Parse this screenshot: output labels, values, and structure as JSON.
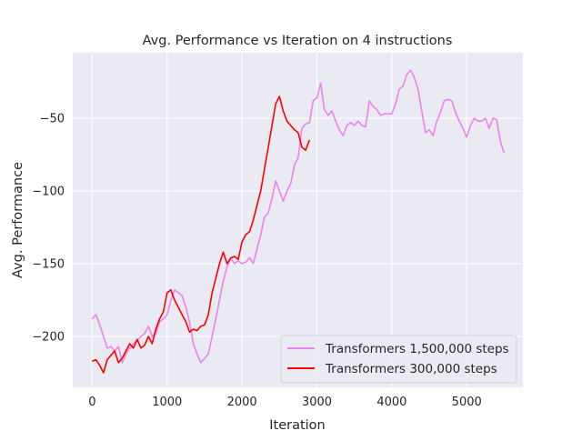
{
  "chart_data": {
    "type": "line",
    "title": "Avg. Performance vs Iteration on 4 instructions",
    "xlabel": "Iteration",
    "ylabel": "Avg. Performance",
    "xlim": [
      -260,
      5750
    ],
    "ylim": [
      -235,
      -5
    ],
    "xticks": [
      0,
      1000,
      2000,
      3000,
      4000,
      5000
    ],
    "yticks": [
      -200,
      -150,
      -100,
      -50
    ],
    "xtick_labels": [
      "0",
      "1000",
      "2000",
      "3000",
      "4000",
      "5000"
    ],
    "ytick_labels": [
      "−200",
      "−150",
      "−100",
      "−50"
    ],
    "grid": true,
    "background": "#eaeaf2",
    "legend_position": "lower-right",
    "series": [
      {
        "name": "Transformers 1,500,000 steps",
        "color": "#ee82ee",
        "x": [
          0,
          50,
          100,
          150,
          200,
          250,
          300,
          350,
          400,
          450,
          500,
          550,
          600,
          650,
          700,
          750,
          800,
          850,
          900,
          950,
          1000,
          1050,
          1100,
          1150,
          1200,
          1250,
          1300,
          1350,
          1400,
          1450,
          1500,
          1550,
          1600,
          1650,
          1700,
          1750,
          1800,
          1850,
          1900,
          1950,
          2000,
          2050,
          2100,
          2150,
          2200,
          2250,
          2300,
          2350,
          2400,
          2450,
          2500,
          2550,
          2600,
          2650,
          2700,
          2750,
          2800,
          2850,
          2900,
          2950,
          3000,
          3050,
          3100,
          3150,
          3200,
          3250,
          3300,
          3350,
          3400,
          3450,
          3500,
          3550,
          3600,
          3650,
          3700,
          3750,
          3800,
          3850,
          3900,
          3950,
          4000,
          4050,
          4100,
          4150,
          4200,
          4250,
          4300,
          4350,
          4400,
          4450,
          4500,
          4550,
          4600,
          4650,
          4700,
          4750,
          4800,
          4850,
          4900,
          4950,
          5000,
          5050,
          5100,
          5150,
          5200,
          5250,
          5300,
          5350,
          5400,
          5450,
          5500
        ],
        "y": [
          -188,
          -185,
          -192,
          -200,
          -208,
          -207,
          -210,
          -207,
          -218,
          -212,
          -208,
          -205,
          -203,
          -200,
          -198,
          -193,
          -200,
          -198,
          -190,
          -188,
          -185,
          -175,
          -168,
          -170,
          -172,
          -180,
          -190,
          -205,
          -212,
          -218,
          -215,
          -212,
          -200,
          -188,
          -175,
          -162,
          -152,
          -146,
          -150,
          -148,
          -150,
          -149,
          -146,
          -150,
          -140,
          -130,
          -118,
          -115,
          -105,
          -93,
          -100,
          -107,
          -100,
          -95,
          -82,
          -77,
          -57,
          -54,
          -53,
          -38,
          -36,
          -26,
          -44,
          -48,
          -45,
          -52,
          -58,
          -62,
          -55,
          -53,
          -55,
          -52,
          -55,
          -56,
          -38,
          -42,
          -44,
          -48,
          -47,
          -47,
          -47,
          -40,
          -30,
          -28,
          -20,
          -17,
          -22,
          -30,
          -45,
          -60,
          -58,
          -62,
          -52,
          -46,
          -38,
          -37,
          -38,
          -46,
          -52,
          -57,
          -63,
          -55,
          -50,
          -52,
          -52,
          -50,
          -57,
          -50,
          -51,
          -66,
          -74
        ]
      },
      {
        "name": "Transformers 300,000 steps",
        "color": "#ff0000",
        "x": [
          0,
          50,
          100,
          150,
          200,
          250,
          300,
          350,
          400,
          450,
          500,
          550,
          600,
          650,
          700,
          750,
          800,
          850,
          900,
          950,
          1000,
          1050,
          1100,
          1150,
          1200,
          1250,
          1300,
          1350,
          1400,
          1450,
          1500,
          1550,
          1600,
          1650,
          1700,
          1750,
          1800,
          1850,
          1900,
          1950,
          2000,
          2050,
          2100,
          2150,
          2200,
          2250,
          2300,
          2350,
          2400,
          2450,
          2500,
          2550,
          2600,
          2650,
          2700,
          2750,
          2800,
          2850,
          2900
        ],
        "y": [
          -217,
          -216,
          -220,
          -225,
          -216,
          -213,
          -210,
          -218,
          -215,
          -210,
          -205,
          -208,
          -202,
          -208,
          -206,
          -200,
          -205,
          -195,
          -188,
          -183,
          -170,
          -168,
          -175,
          -180,
          -185,
          -190,
          -197,
          -195,
          -196,
          -193,
          -192,
          -185,
          -170,
          -160,
          -150,
          -142,
          -150,
          -146,
          -145,
          -147,
          -135,
          -130,
          -128,
          -120,
          -110,
          -100,
          -85,
          -70,
          -55,
          -40,
          -35,
          -45,
          -52,
          -55,
          -58,
          -60,
          -70,
          -72,
          -65
        ]
      }
    ]
  }
}
